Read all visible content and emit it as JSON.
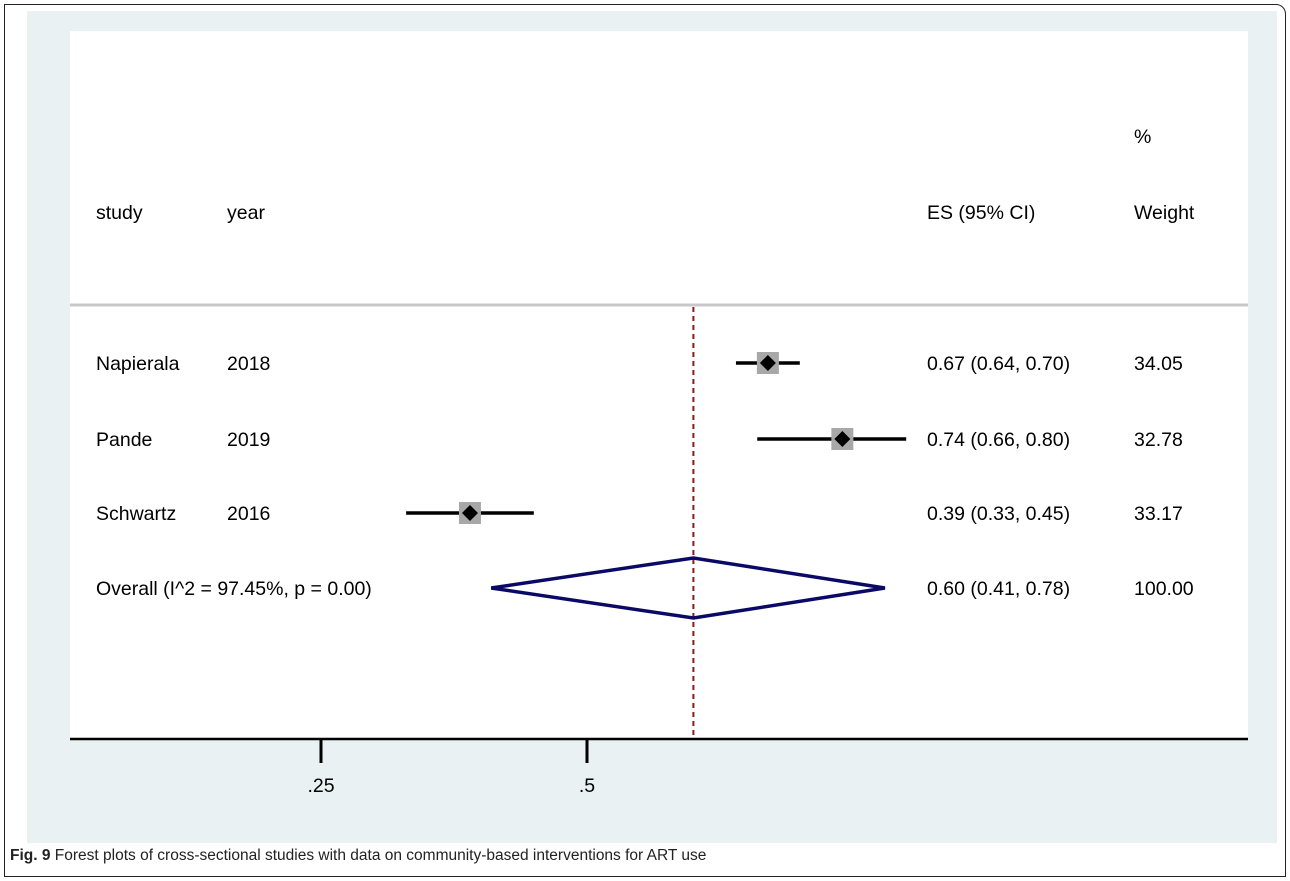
{
  "figure": {
    "label": "Fig. 9",
    "caption": " Forest plots of cross-sectional studies with data on community-based interventions for ART use"
  },
  "chart_data": {
    "type": "forest",
    "columns": {
      "study": "study",
      "year": "year",
      "es": "ES (95% CI)",
      "weight_top": "%",
      "weight": "Weight"
    },
    "studies": [
      {
        "study": "Napierala",
        "year": "2018",
        "es": 0.67,
        "lo": 0.64,
        "hi": 0.7,
        "es_label": "0.67 (0.64, 0.70)",
        "weight_label": "34.05"
      },
      {
        "study": "Pande",
        "year": "2019",
        "es": 0.74,
        "lo": 0.66,
        "hi": 0.8,
        "es_label": "0.74 (0.66, 0.80)",
        "weight_label": "32.78"
      },
      {
        "study": "Schwartz",
        "year": "2016",
        "es": 0.39,
        "lo": 0.33,
        "hi": 0.45,
        "es_label": "0.39 (0.33, 0.45)",
        "weight_label": "33.17"
      }
    ],
    "overall": {
      "label": "Overall  (I^2 = 97.45%, p = 0.00)",
      "es": 0.6,
      "lo": 0.41,
      "hi": 0.78,
      "es_label": "0.60 (0.41, 0.78)",
      "weight_label": "100.00"
    },
    "x_ticks": [
      {
        "value": 0.25,
        "label": ".25"
      },
      {
        "value": 0.5,
        "label": ".5"
      }
    ],
    "reference_line": 0.6,
    "colors": {
      "background": "#e9f1f3",
      "ci_line": "#000000",
      "weight_box": "#a8a8a8",
      "overall_diamond": "#0a0a66",
      "reference_line": "#8b1a1a",
      "header_rule": "#c8c8c8"
    }
  }
}
